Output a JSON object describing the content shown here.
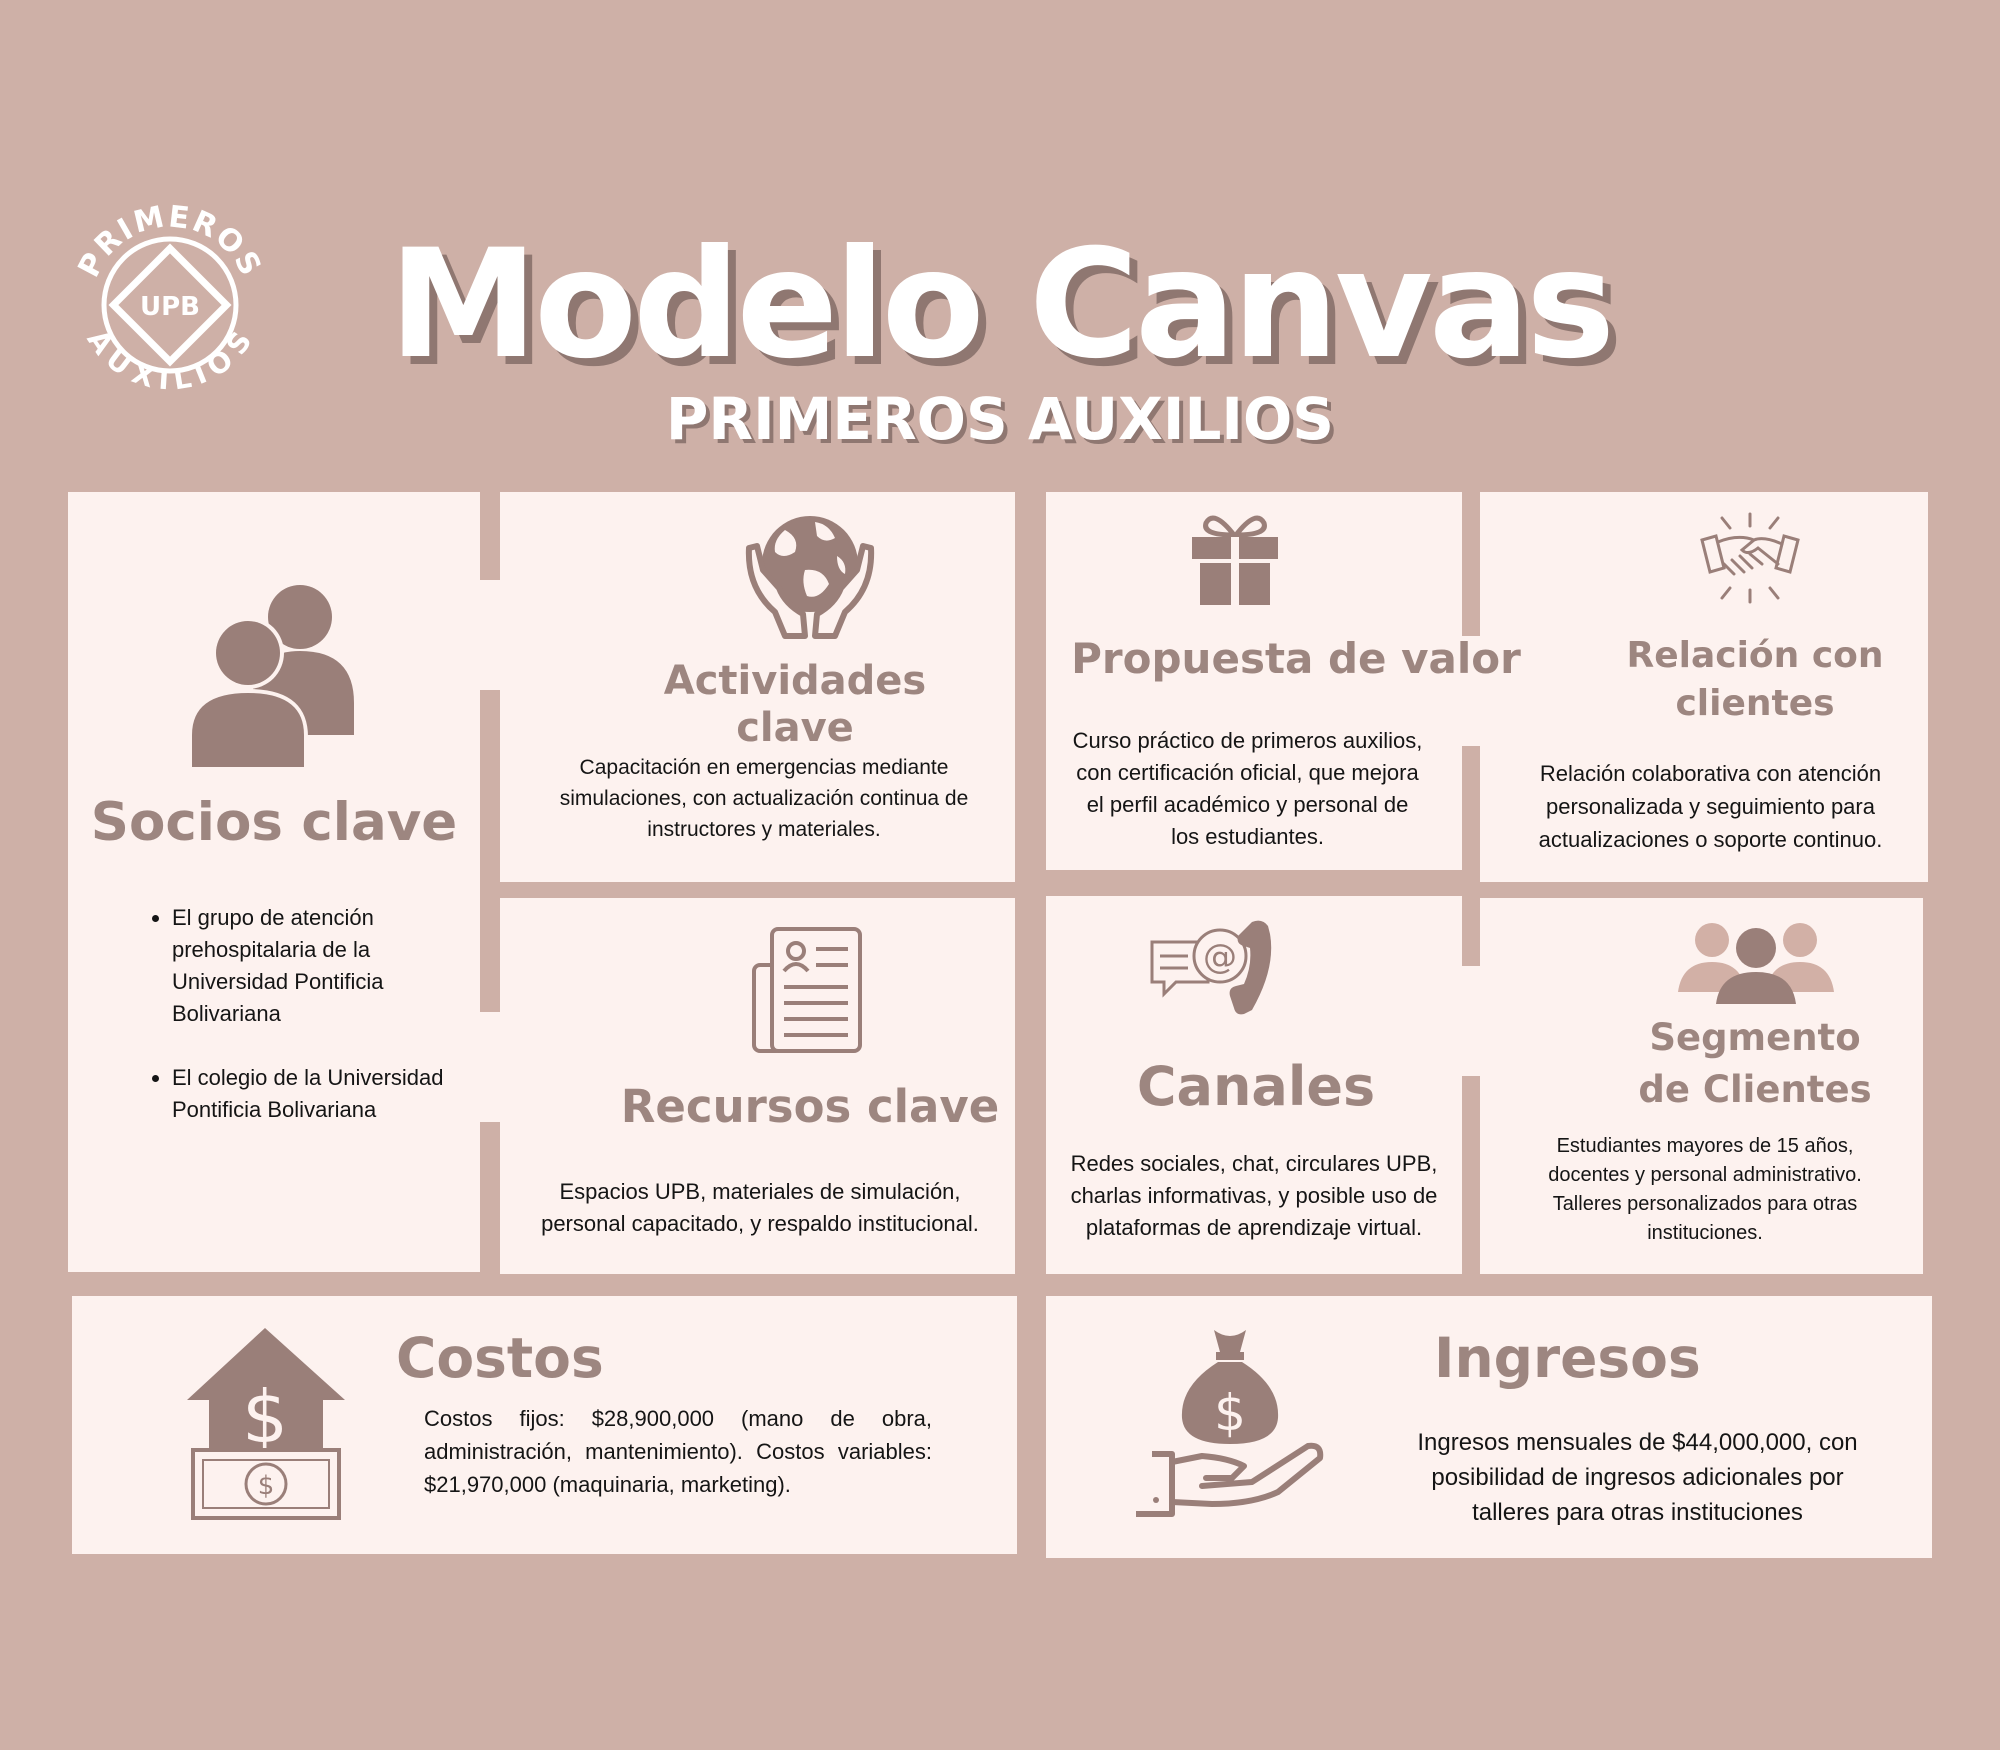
{
  "logo": {
    "top_text": "PRIMEROS",
    "center_text": "UPB",
    "bottom_text": "AUXILIOS"
  },
  "header": {
    "title": "Modelo Canvas",
    "subtitle": "PRIMEROS AUXILIOS"
  },
  "colors": {
    "background": "#ceb0a7",
    "card": "#fdf2ef",
    "accent": "#9d8680",
    "icon": "#9a7f79",
    "title_shadow": "#8f7771"
  },
  "socios": {
    "icon": "users-icon",
    "title": "Socios clave",
    "items": [
      "El grupo de atención prehospitalaria de la Universidad Pontificia Bolivariana",
      "El colegio de la Universidad Pontificia Bolivariana"
    ]
  },
  "actividades": {
    "icon": "globe-hands-icon",
    "title_line1": "Actividades",
    "title_line2": "clave",
    "text": "Capacitación en emergencias mediante simulaciones, con actualización continua de instructores y materiales."
  },
  "recursos": {
    "icon": "document-icon",
    "title": "Recursos clave",
    "text": "Espacios UPB, materiales de simulación, personal capacitado, y respaldo institucional."
  },
  "propuesta": {
    "icon": "gift-icon",
    "title": "Propuesta de valor",
    "text": "Curso práctico de primeros auxilios, con certificación oficial, que mejora el perfil académico y personal de los estudiantes."
  },
  "canales": {
    "icon": "chat-phone-icon",
    "title": "Canales",
    "text": "Redes sociales, chat, circulares UPB, charlas informativas, y posible uso de plataformas de aprendizaje virtual."
  },
  "relacion": {
    "icon": "handshake-icon",
    "title_line1": "Relación con",
    "title_line2": "clientes",
    "text": "Relación colaborativa con atención personalizada y seguimiento para actualizaciones o soporte continuo."
  },
  "segmento": {
    "icon": "group-icon",
    "title_line1": "Segmento",
    "title_line2": "de Clientes",
    "text": "Estudiantes mayores de 15 años, docentes y personal administrativo. Talleres personalizados para otras instituciones."
  },
  "costos": {
    "icon": "house-dollar-icon",
    "title": "Costos",
    "text": "Costos fijos: $28,900,000 (mano de obra, administración, mantenimiento). Costos variables: $21,970,000 (maquinaria, marketing)."
  },
  "ingresos": {
    "icon": "money-bag-hand-icon",
    "title": "Ingresos",
    "text": "Ingresos mensuales de $44,000,000, con posibilidad de ingresos adicionales por talleres para otras instituciones"
  }
}
